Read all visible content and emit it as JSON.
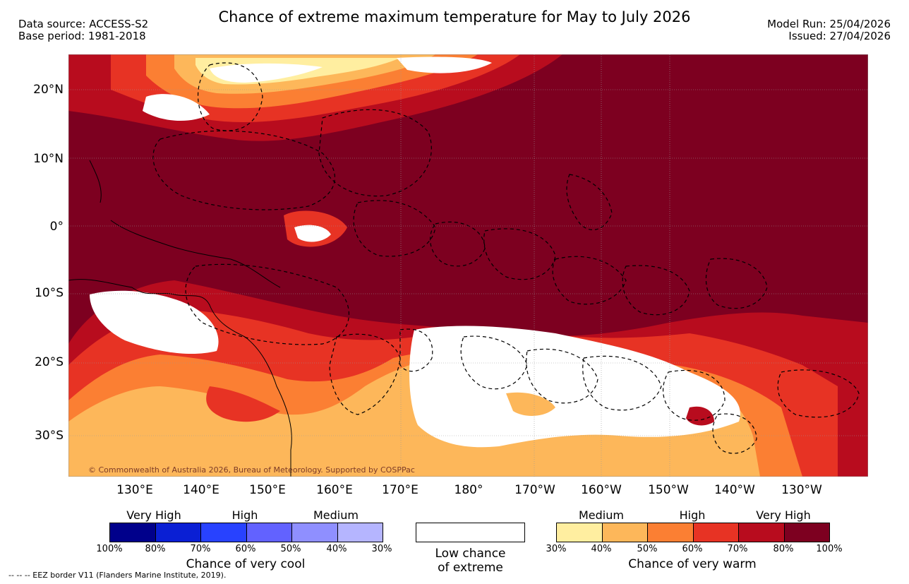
{
  "header": {
    "data_source": "Data source: ACCESS-S2",
    "base_period": "Base period: 1981-2018",
    "title": "Chance of extreme maximum temperature for May to July 2026",
    "model_run": "Model Run: 25/04/2026",
    "issued": "Issued: 27/04/2026"
  },
  "map": {
    "lat_labels": [
      "20°N",
      "10°N",
      "0°",
      "10°S",
      "20°S",
      "30°S"
    ],
    "lon_labels": [
      "130°E",
      "140°E",
      "150°E",
      "160°E",
      "170°E",
      "180°",
      "170°W",
      "160°W",
      "150°W",
      "140°W",
      "130°W"
    ],
    "copyright": "© Commonwealth of Australia 2026, Bureau of Meteorology. Supported by COSPPac"
  },
  "legend_cool": {
    "categories": [
      "Very High",
      "High",
      "Medium"
    ],
    "ticks": [
      "100%",
      "80%",
      "70%",
      "60%",
      "50%",
      "40%",
      "30%"
    ],
    "colors": [
      "#00008b",
      "#0a1fd4",
      "#2842ff",
      "#6262ff",
      "#8f8fff",
      "#b5b5ff"
    ],
    "caption": "Chance of very cool"
  },
  "legend_low": {
    "line1": "Low chance",
    "line2": "of extreme"
  },
  "legend_warm": {
    "categories": [
      "Medium",
      "High",
      "Very High"
    ],
    "ticks": [
      "30%",
      "40%",
      "50%",
      "60%",
      "70%",
      "80%",
      "100%"
    ],
    "colors": [
      "#ffeea0",
      "#fdb75a",
      "#fb7f33",
      "#e73324",
      "#b80c1e",
      "#7d0020"
    ],
    "caption": "Chance of very warm"
  },
  "footer": {
    "eez_note": "--  --  -- EEZ border V11 (Flanders Marine Institute, 2019)."
  }
}
